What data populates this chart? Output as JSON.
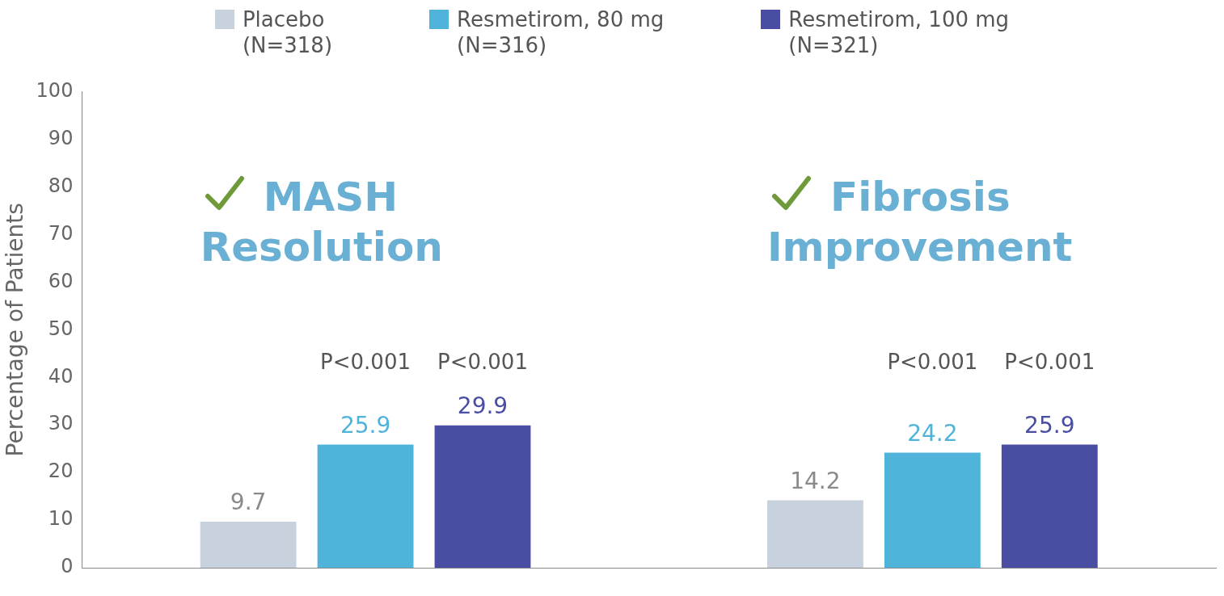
{
  "chart_data": {
    "type": "bar",
    "categories": [
      null,
      null
    ],
    "series": [
      {
        "name": "Placebo\n(N=318)",
        "color": "#c8d1de",
        "values": [
          9.7,
          14.2
        ]
      },
      {
        "name": "Resmetirom, 80 mg\n(N=316)",
        "color": "#4fb3da",
        "values": [
          25.9,
          24.2
        ]
      },
      {
        "name": "Resmetirom, 100 mg\n(N=321)",
        "color": "#4a4ea3",
        "values": [
          29.9,
          25.9
        ]
      }
    ],
    "ylabel": "Percentage of Patients",
    "ylim": [
      0,
      100
    ],
    "yticks": [
      0,
      10,
      20,
      30,
      40,
      50,
      60,
      70,
      80,
      90,
      100
    ],
    "grid": false,
    "legend": "top",
    "data_labels": true,
    "annotations": [
      "MASH\nResolution",
      "Fibrosis\nImprovement",
      "P<0.001",
      "P<0.001",
      "P<0.001",
      "P<0.001"
    ]
  }
}
